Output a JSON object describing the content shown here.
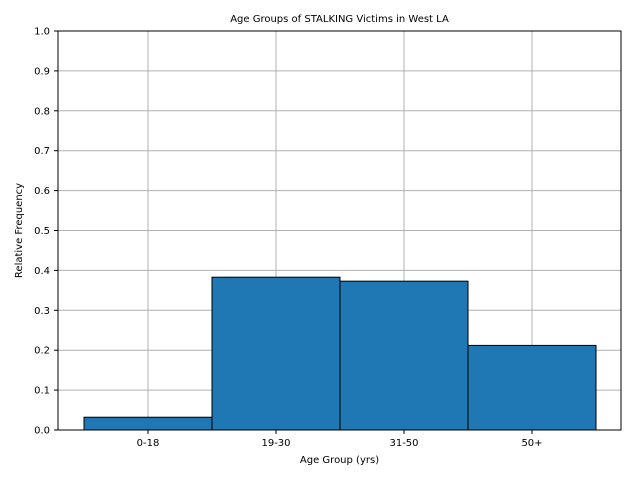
{
  "chart_data": {
    "type": "bar",
    "title": "Age Groups of STALKING Victims in West LA",
    "xlabel": "Age Group (yrs)",
    "ylabel": "Relative Frequency",
    "categories": [
      "0-18",
      "19-30",
      "31-50",
      "50+"
    ],
    "values": [
      0.032,
      0.383,
      0.373,
      0.212
    ],
    "ylim": [
      0,
      1.0
    ],
    "yticks": [
      "0.0",
      "0.1",
      "0.2",
      "0.3",
      "0.4",
      "0.5",
      "0.6",
      "0.7",
      "0.8",
      "0.9",
      "1.0"
    ],
    "grid": true,
    "colors": {
      "bar": "#1f77b4",
      "edge": "#000000",
      "grid": "#b0b0b0"
    }
  }
}
